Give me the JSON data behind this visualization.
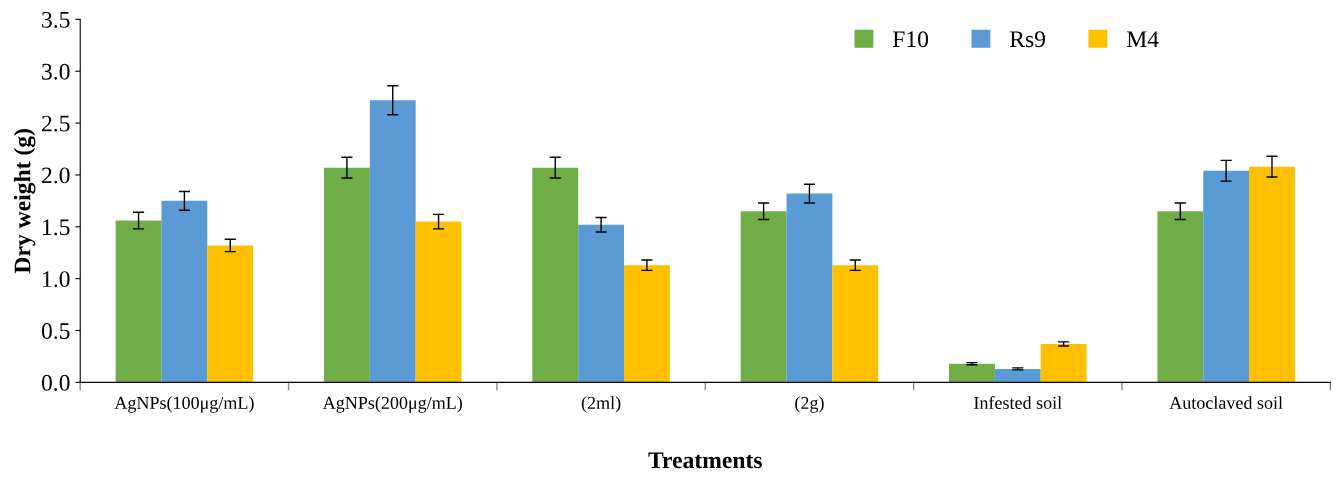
{
  "chart_data": {
    "type": "bar",
    "xlabel": "Treatments",
    "ylabel": "Dry weight (g)",
    "categories": [
      "AgNPs(100μg/mL)",
      "AgNPs(200μg/mL)",
      "(2ml)",
      "(2g)",
      "Infested soil",
      "Autoclaved soil"
    ],
    "series": [
      {
        "name": "F10",
        "color": "#70ad47",
        "values": [
          1.56,
          2.07,
          2.07,
          1.65,
          0.18,
          1.65
        ],
        "errors": [
          0.08,
          0.1,
          0.1,
          0.08,
          0.01,
          0.08
        ]
      },
      {
        "name": "Rs9",
        "color": "#5b9bd5",
        "values": [
          1.75,
          2.72,
          1.52,
          1.82,
          0.13,
          2.04
        ],
        "errors": [
          0.09,
          0.14,
          0.07,
          0.09,
          0.01,
          0.1
        ]
      },
      {
        "name": "M4",
        "color": "#ffc000",
        "values": [
          1.32,
          1.55,
          1.13,
          1.13,
          0.37,
          2.08
        ],
        "errors": [
          0.06,
          0.07,
          0.05,
          0.05,
          0.02,
          0.1
        ]
      }
    ],
    "ylim": [
      0,
      3.5
    ],
    "yticks": [
      {
        "value": 0,
        "label": "0.0"
      },
      {
        "value": 0.5,
        "label": "0.5"
      },
      {
        "value": 1,
        "label": "1.0"
      },
      {
        "value": 1.5,
        "label": "1.5"
      },
      {
        "value": 2,
        "label": "2.0"
      },
      {
        "value": 2.5,
        "label": "2.5"
      },
      {
        "value": 3,
        "label": "3.0"
      },
      {
        "value": 3.5,
        "label": "3.5"
      }
    ],
    "grid": false,
    "legend": "top right"
  }
}
